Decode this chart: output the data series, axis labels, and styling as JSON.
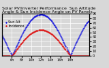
{
  "title": "Solar PV/Inverter Performance  Sun Altitude Angle & Sun Incidence Angle on PV Panels",
  "blue_color": "#0000dd",
  "red_color": "#dd0000",
  "background_color": "#d8d8d8",
  "grid_color": "#ffffff",
  "ylim": [
    0,
    90
  ],
  "xlim": [
    4,
    22
  ],
  "xtick_positions": [
    6,
    8,
    10,
    12,
    14,
    16,
    18
  ],
  "xtick_labels": [
    "6h",
    "8h",
    "10h",
    "12h",
    "14h",
    "16h",
    "18h"
  ],
  "ytick_positions": [
    0,
    10,
    20,
    30,
    40,
    50,
    60,
    70,
    80,
    90
  ],
  "title_fontsize": 4.5,
  "tick_fontsize": 3.5,
  "legend_labels": [
    "Sun Alt",
    "Incidence"
  ],
  "legend_fontsize": 3.5,
  "blue_peak": 88,
  "blue_min": 5,
  "red_peak": 55,
  "sun_rise": 6.0,
  "sun_set": 18.0,
  "noon": 12.0
}
